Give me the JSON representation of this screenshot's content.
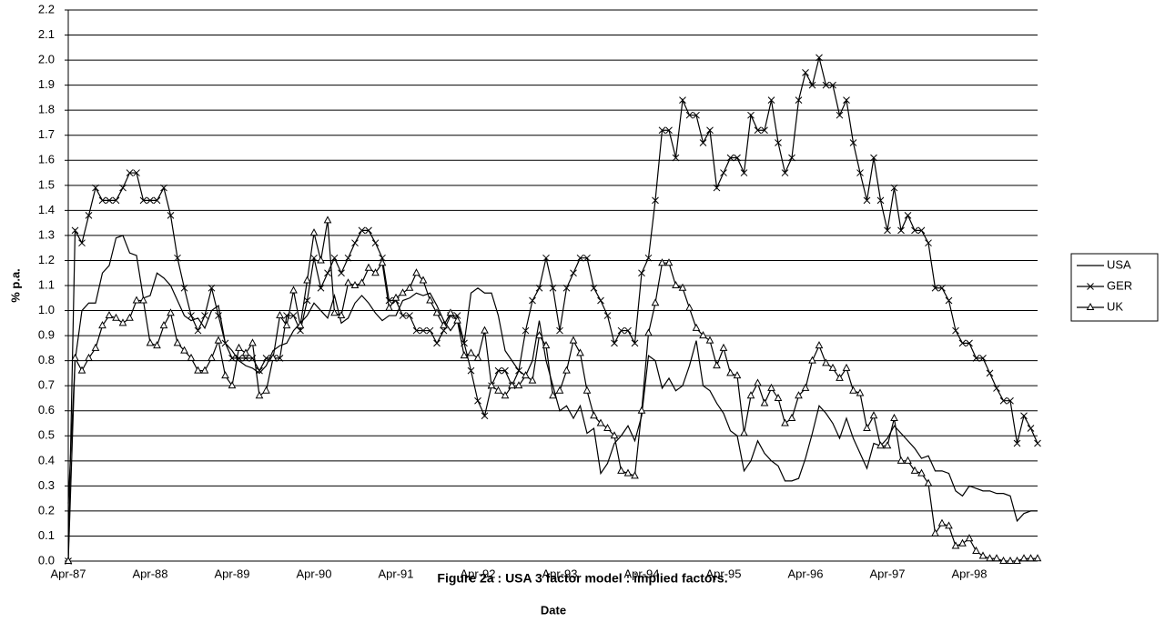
{
  "chart_data": {
    "type": "line",
    "title": "Figure 2a : USA 3 factor model : implied factors.",
    "x_label": "Date",
    "y_label": "% p.a.",
    "categories": [
      "Apr-87",
      null,
      null,
      null,
      null,
      null,
      null,
      null,
      null,
      null,
      null,
      null,
      "Apr-88",
      null,
      null,
      null,
      null,
      null,
      null,
      null,
      null,
      null,
      null,
      null,
      "Apr-89",
      null,
      null,
      null,
      null,
      null,
      null,
      null,
      null,
      null,
      null,
      null,
      "Apr-90",
      null,
      null,
      null,
      null,
      null,
      null,
      null,
      null,
      null,
      null,
      null,
      "Apr-91",
      null,
      null,
      null,
      null,
      null,
      null,
      null,
      null,
      null,
      null,
      null,
      "Apr-92",
      null,
      null,
      null,
      null,
      null,
      null,
      null,
      null,
      null,
      null,
      null,
      "Apr-93",
      null,
      null,
      null,
      null,
      null,
      null,
      null,
      null,
      null,
      null,
      null,
      "Apr-94",
      null,
      null,
      null,
      null,
      null,
      null,
      null,
      null,
      null,
      null,
      null,
      "Apr-95",
      null,
      null,
      null,
      null,
      null,
      null,
      null,
      null,
      null,
      null,
      null,
      "Apr-96",
      null,
      null,
      null,
      null,
      null,
      null,
      null,
      null,
      null,
      null,
      null,
      "Apr-97",
      null,
      null,
      null,
      null,
      null,
      null,
      null,
      null,
      null,
      null,
      null,
      "Apr-98",
      null,
      null,
      null,
      null,
      null,
      null,
      null,
      null,
      null,
      null
    ],
    "series": [
      {
        "name": "USA",
        "color": "#000000",
        "marker": "none",
        "values": [
          0.23,
          0.8,
          1.0,
          1.03,
          1.03,
          1.15,
          1.18,
          1.29,
          1.3,
          1.23,
          1.22,
          1.05,
          1.06,
          1.15,
          1.13,
          1.1,
          1.04,
          0.98,
          0.96,
          0.97,
          0.93,
          1.0,
          1.02,
          0.87,
          0.84,
          0.8,
          0.78,
          0.77,
          0.75,
          0.78,
          0.84,
          0.86,
          0.87,
          0.92,
          0.95,
          0.98,
          1.03,
          1.0,
          0.97,
          1.06,
          0.95,
          0.97,
          1.03,
          1.06,
          1.03,
          0.99,
          0.96,
          0.98,
          0.98,
          1.04,
          1.05,
          1.07,
          1.06,
          1.07,
          1.02,
          0.96,
          0.92,
          0.96,
          0.87,
          1.07,
          1.09,
          1.07,
          1.07,
          0.98,
          0.84,
          0.8,
          0.76,
          0.74,
          0.8,
          0.96,
          0.8,
          0.7,
          0.6,
          0.62,
          0.57,
          0.62,
          0.51,
          0.53,
          0.35,
          0.39,
          0.47,
          0.5,
          0.54,
          0.48,
          0.58,
          0.82,
          0.8,
          0.69,
          0.73,
          0.68,
          0.7,
          0.78,
          0.88,
          0.7,
          0.68,
          0.63,
          0.59,
          0.52,
          0.5,
          0.36,
          0.4,
          0.48,
          0.43,
          0.4,
          0.38,
          0.32,
          0.32,
          0.33,
          0.41,
          0.51,
          0.62,
          0.59,
          0.55,
          0.49,
          0.57,
          0.49,
          0.43,
          0.37,
          0.47,
          0.46,
          0.49,
          0.54,
          0.51,
          0.48,
          0.45,
          0.41,
          0.42,
          0.36,
          0.36,
          0.35,
          0.28,
          0.26,
          0.3,
          0.29,
          0.28,
          0.28,
          0.27,
          0.27,
          0.26,
          0.16,
          0.19,
          0.2,
          0.2
        ]
      },
      {
        "name": "GER",
        "color": "#000000",
        "marker": "x",
        "values": [
          0.0,
          1.32,
          1.27,
          1.38,
          1.49,
          1.44,
          1.44,
          1.44,
          1.49,
          1.55,
          1.55,
          1.44,
          1.44,
          1.44,
          1.49,
          1.38,
          1.21,
          1.09,
          0.98,
          0.92,
          0.98,
          1.09,
          0.98,
          0.87,
          0.81,
          0.81,
          0.81,
          0.81,
          0.76,
          0.81,
          0.81,
          0.81,
          0.98,
          0.98,
          0.92,
          1.04,
          1.21,
          1.09,
          1.15,
          1.21,
          1.15,
          1.21,
          1.27,
          1.32,
          1.32,
          1.27,
          1.21,
          1.04,
          1.04,
          0.98,
          0.98,
          0.92,
          0.92,
          0.92,
          0.87,
          0.92,
          0.98,
          0.98,
          0.87,
          0.76,
          0.64,
          0.58,
          0.7,
          0.76,
          0.76,
          0.7,
          0.76,
          0.92,
          1.04,
          1.09,
          1.21,
          1.09,
          0.92,
          1.09,
          1.15,
          1.21,
          1.21,
          1.09,
          1.04,
          0.98,
          0.87,
          0.92,
          0.92,
          0.87,
          1.15,
          1.21,
          1.44,
          1.72,
          1.72,
          1.61,
          1.84,
          1.78,
          1.78,
          1.67,
          1.72,
          1.49,
          1.55,
          1.61,
          1.61,
          1.55,
          1.78,
          1.72,
          1.72,
          1.84,
          1.67,
          1.55,
          1.61,
          1.84,
          1.95,
          1.9,
          2.01,
          1.9,
          1.9,
          1.78,
          1.84,
          1.67,
          1.55,
          1.44,
          1.61,
          1.44,
          1.32,
          1.49,
          1.32,
          1.38,
          1.32,
          1.32,
          1.27,
          1.09,
          1.09,
          1.04,
          0.92,
          0.87,
          0.87,
          0.81,
          0.81,
          0.75,
          0.69,
          0.64,
          0.64,
          0.47,
          0.58,
          0.53,
          0.47
        ]
      },
      {
        "name": "UK",
        "color": "#000000",
        "marker": "triangle",
        "values": [
          0.0,
          0.81,
          0.76,
          0.81,
          0.85,
          0.94,
          0.98,
          0.97,
          0.95,
          0.97,
          1.04,
          1.04,
          0.87,
          0.86,
          0.94,
          0.99,
          0.87,
          0.84,
          0.81,
          0.76,
          0.76,
          0.81,
          0.88,
          0.74,
          0.7,
          0.85,
          0.83,
          0.87,
          0.66,
          0.68,
          0.81,
          0.98,
          0.94,
          1.08,
          0.94,
          1.12,
          1.31,
          1.2,
          1.36,
          0.99,
          0.98,
          1.11,
          1.1,
          1.11,
          1.17,
          1.15,
          1.19,
          1.01,
          1.05,
          1.07,
          1.09,
          1.15,
          1.12,
          1.04,
          0.99,
          0.94,
          0.99,
          0.96,
          0.82,
          0.83,
          0.81,
          0.92,
          0.7,
          0.68,
          0.66,
          0.7,
          0.7,
          0.74,
          0.72,
          0.9,
          0.86,
          0.66,
          0.68,
          0.76,
          0.88,
          0.83,
          0.68,
          0.58,
          0.55,
          0.53,
          0.5,
          0.36,
          0.35,
          0.34,
          0.6,
          0.91,
          1.03,
          1.19,
          1.19,
          1.1,
          1.09,
          1.01,
          0.93,
          0.9,
          0.88,
          0.78,
          0.85,
          0.75,
          0.74,
          0.51,
          0.66,
          0.71,
          0.63,
          0.69,
          0.65,
          0.55,
          0.57,
          0.66,
          0.69,
          0.8,
          0.86,
          0.79,
          0.77,
          0.73,
          0.77,
          0.68,
          0.67,
          0.53,
          0.58,
          0.46,
          0.46,
          0.57,
          0.4,
          0.4,
          0.36,
          0.35,
          0.31,
          0.11,
          0.15,
          0.14,
          0.06,
          0.07,
          0.09,
          0.04,
          0.02,
          0.01,
          0.01,
          0.0,
          0.0,
          0.0,
          0.01,
          0.01,
          0.01
        ]
      }
    ],
    "ylim": [
      0,
      2.2
    ],
    "yticks": [
      {
        "value": 0,
        "label": "0.0"
      },
      0.1,
      0.2,
      0.3,
      0.4,
      0.5,
      0.6,
      0.7,
      0.8,
      0.9,
      {
        "value": 1,
        "label": "1.0"
      },
      1.1,
      1.2,
      1.3,
      1.4,
      1.5,
      1.6,
      1.7,
      1.8,
      1.9,
      {
        "value": 2,
        "label": "2.0"
      },
      2.1,
      2.2
    ],
    "grid": true,
    "legend": "right"
  }
}
